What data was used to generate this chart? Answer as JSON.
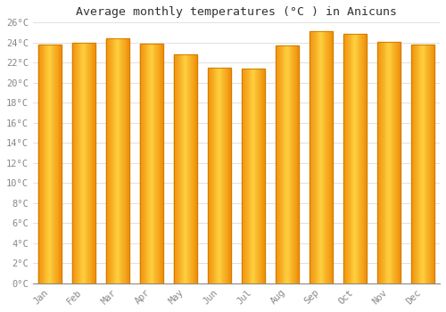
{
  "title": "Average monthly temperatures (°C ) in Anicuns",
  "months": [
    "Jan",
    "Feb",
    "Mar",
    "Apr",
    "May",
    "Jun",
    "Jul",
    "Aug",
    "Sep",
    "Oct",
    "Nov",
    "Dec"
  ],
  "values": [
    23.8,
    24.0,
    24.4,
    23.9,
    22.8,
    21.5,
    21.4,
    23.7,
    25.1,
    24.9,
    24.1,
    23.8
  ],
  "bar_color_center": "#FFD040",
  "bar_color_edge": "#F0900A",
  "bar_outline_color": "#CC7700",
  "background_color": "#ffffff",
  "plot_bg_color": "#ffffff",
  "grid_color": "#e0e0e0",
  "text_color": "#888888",
  "title_color": "#333333",
  "ylim": [
    0,
    26
  ],
  "yticks": [
    0,
    2,
    4,
    6,
    8,
    10,
    12,
    14,
    16,
    18,
    20,
    22,
    24,
    26
  ],
  "title_fontsize": 9.5,
  "tick_fontsize": 7.5,
  "bar_width": 0.7
}
